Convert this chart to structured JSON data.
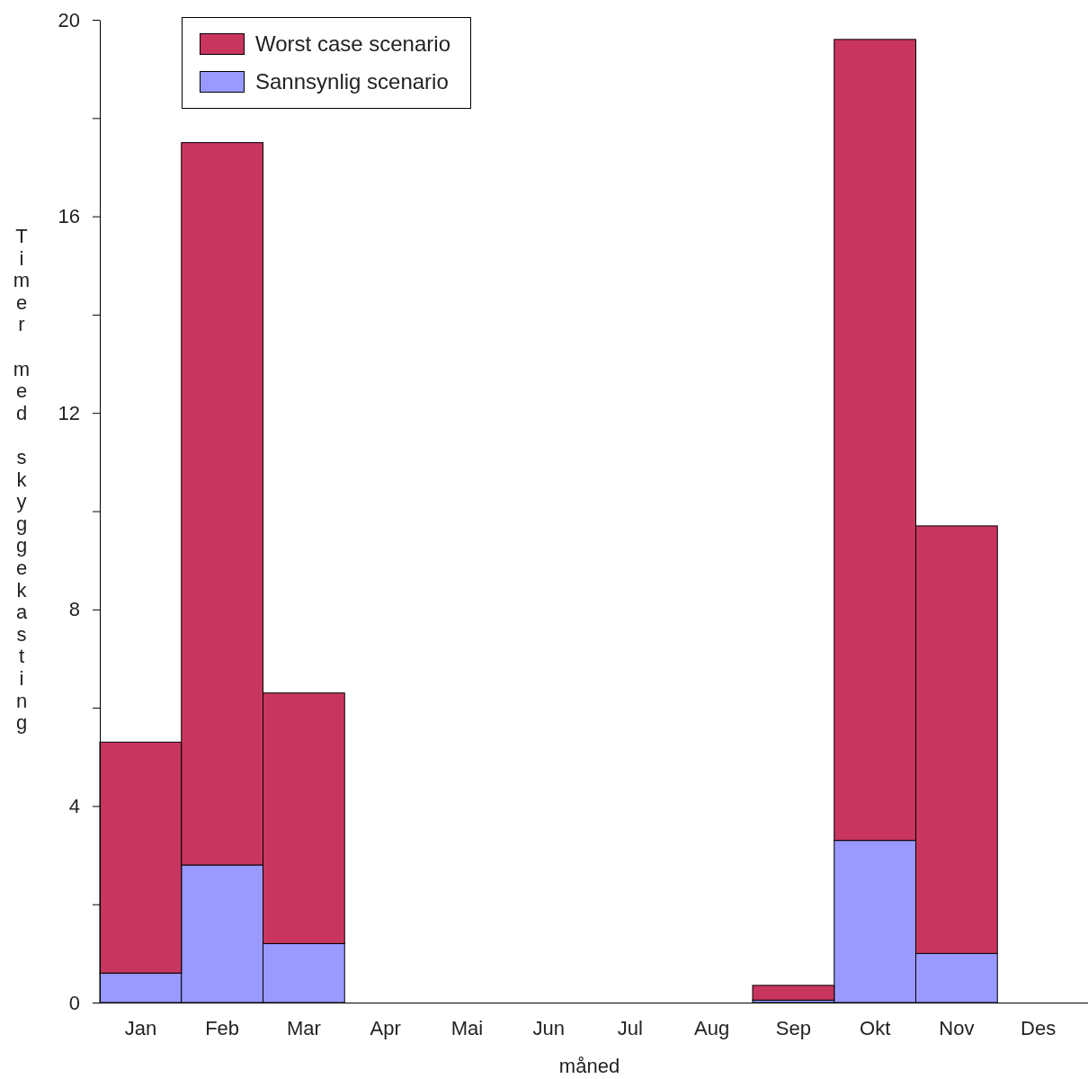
{
  "chart_data": {
    "type": "bar",
    "stacked": true,
    "xlabel": "måned",
    "ylabel": "Timer med skyggekasting",
    "categories": [
      "Jan",
      "Feb",
      "Mar",
      "Apr",
      "Mai",
      "Jun",
      "Jul",
      "Aug",
      "Sep",
      "Okt",
      "Nov",
      "Des"
    ],
    "series": [
      {
        "name": "Sannsynlig scenario",
        "color": "#9999ff",
        "values": [
          0.6,
          2.8,
          1.2,
          0,
          0,
          0,
          0,
          0,
          0.05,
          3.3,
          1.0,
          0
        ]
      },
      {
        "name": "Worst case scenario",
        "color": "#c8365f",
        "values": [
          4.7,
          14.7,
          5.1,
          0,
          0,
          0,
          0,
          0,
          0.3,
          16.3,
          8.7,
          0
        ]
      }
    ],
    "ylim": [
      0,
      20
    ],
    "yticks": [
      0,
      {
        "value": 2,
        "label": null
      },
      4,
      {
        "value": 6,
        "label": null
      },
      8,
      {
        "value": 10,
        "label": null
      },
      12,
      {
        "value": 14,
        "label": null
      },
      16,
      {
        "value": 18,
        "label": null
      },
      20
    ],
    "legend": "top left",
    "grid": false
  }
}
